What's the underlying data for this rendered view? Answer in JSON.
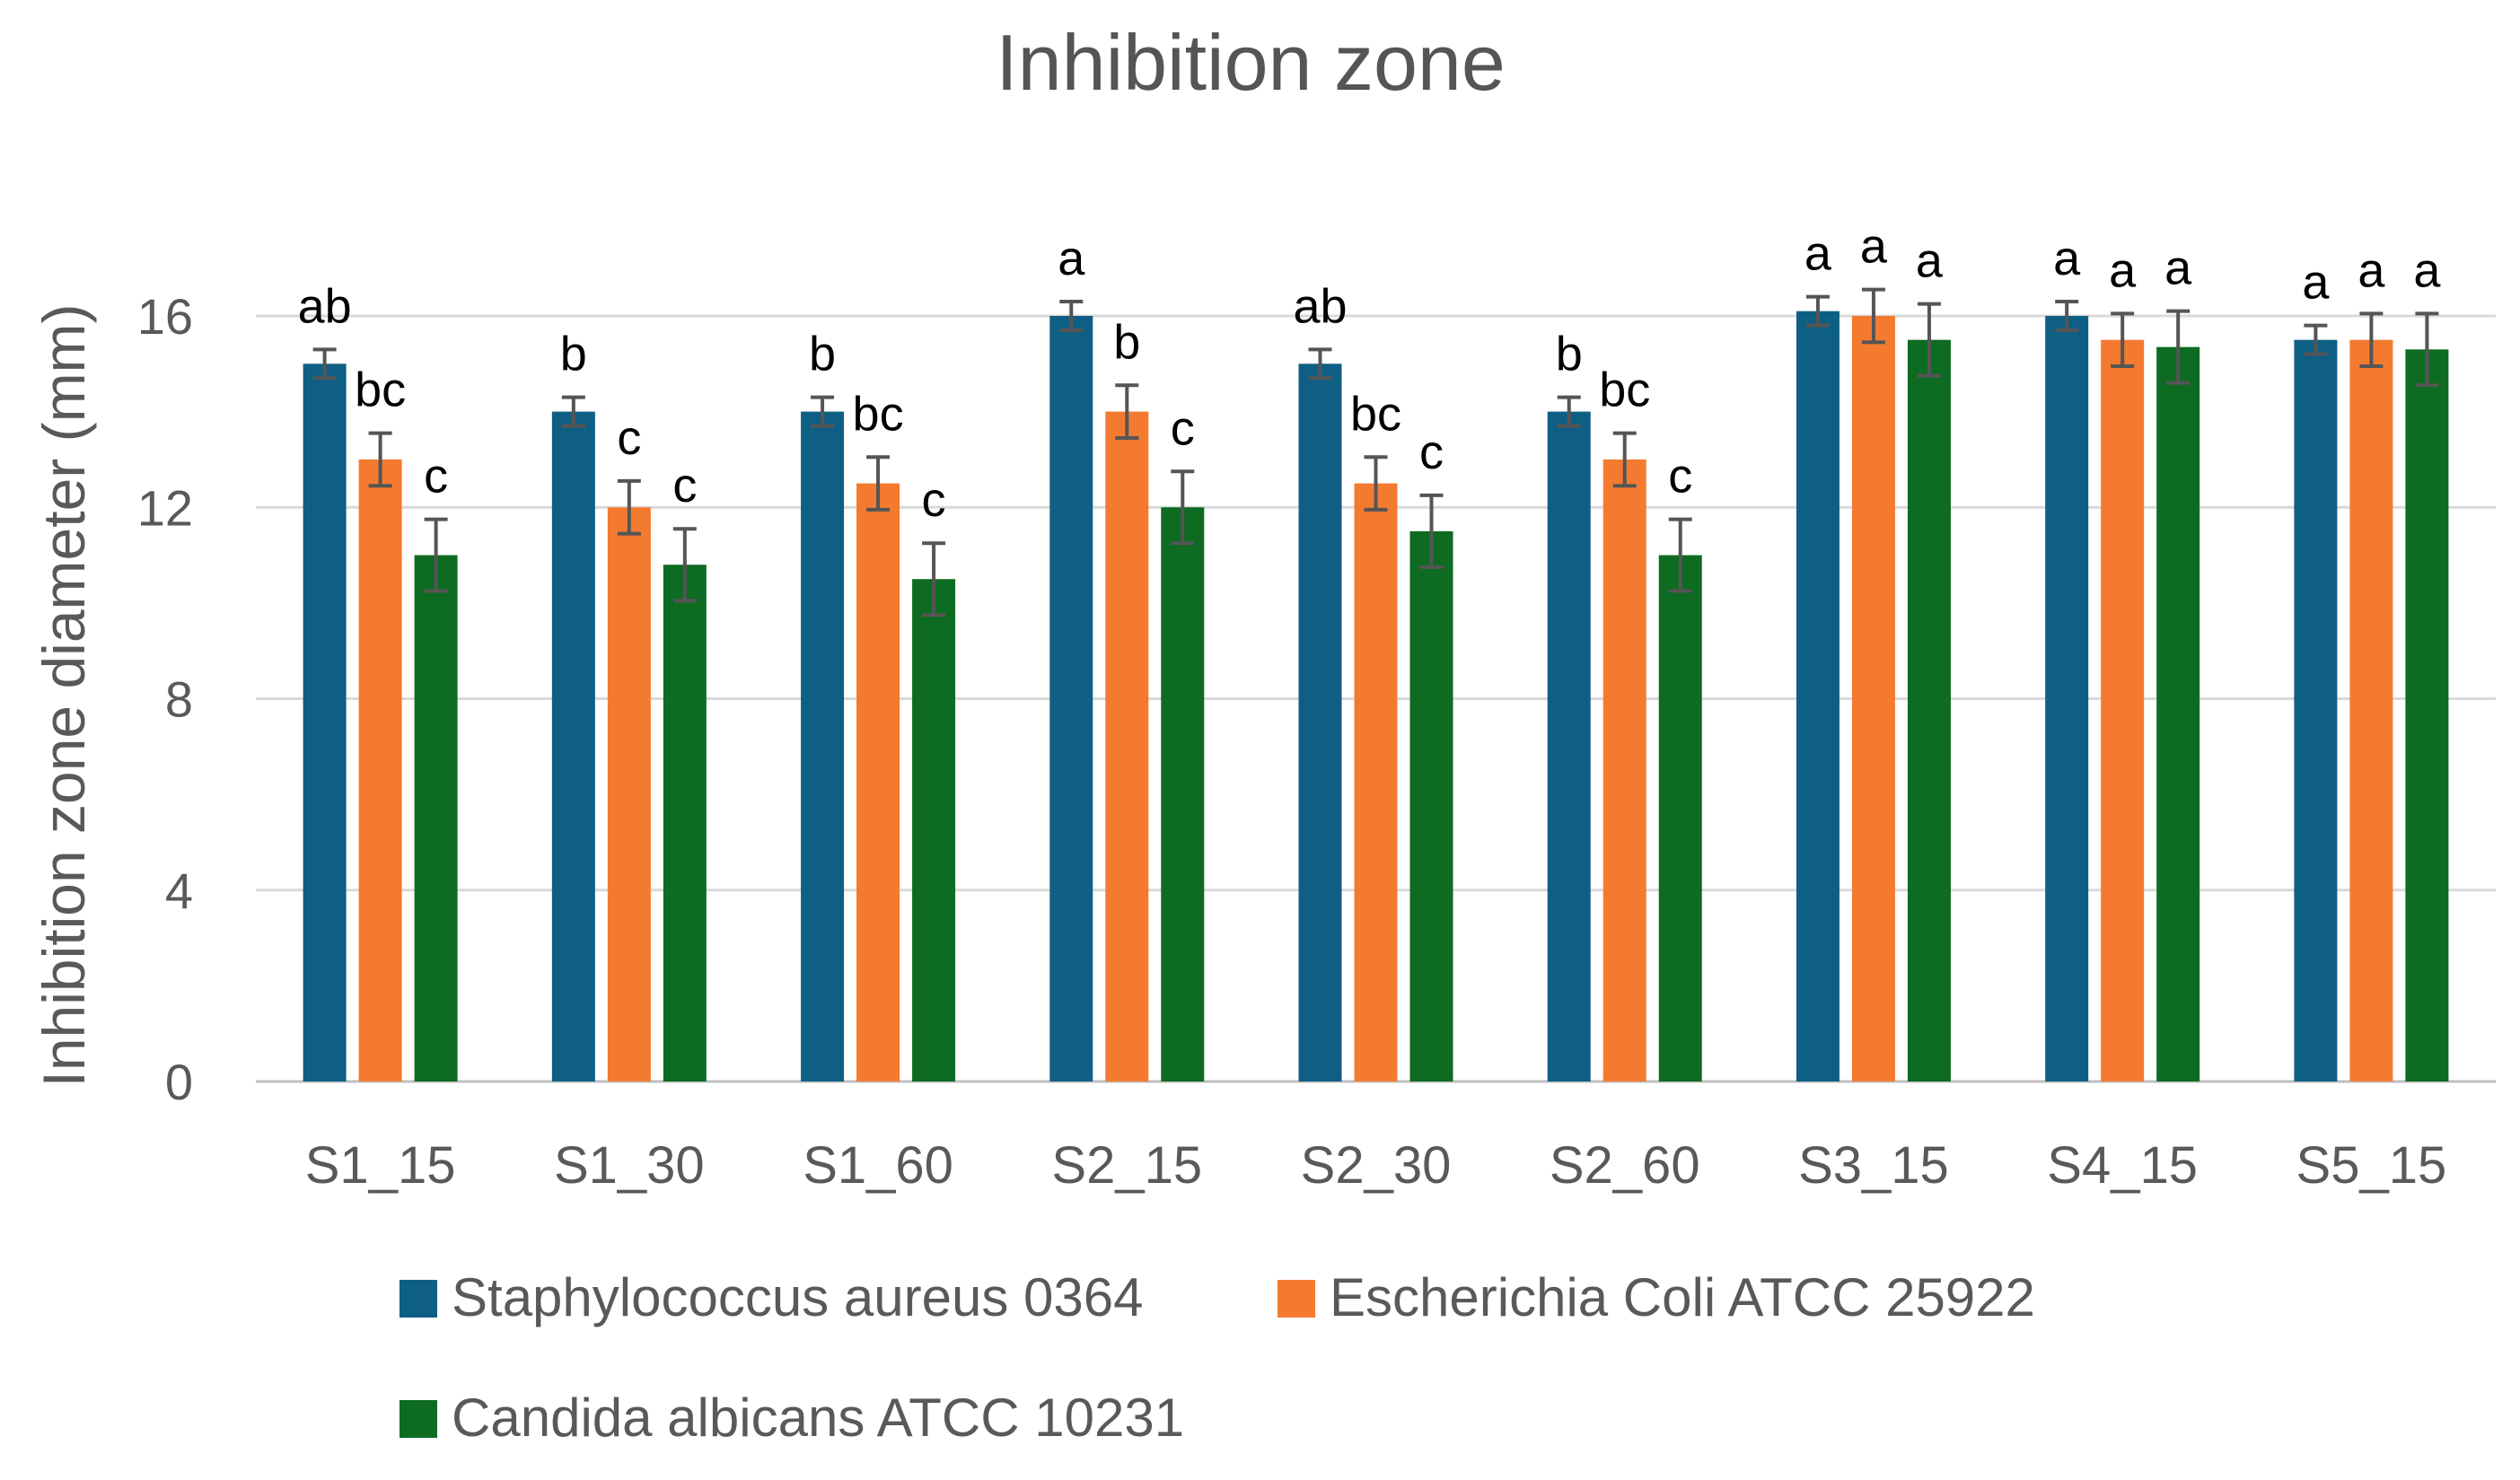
{
  "chart_data": {
    "type": "bar",
    "title": "Inhibition zone",
    "xlabel": "",
    "ylabel": "Inhibition zone diameter (mm)",
    "ylim": [
      0,
      16
    ],
    "yticks": [
      0,
      4,
      8,
      12,
      16
    ],
    "grid": true,
    "legend_position": "bottom",
    "categories": [
      "S1_15",
      "S1_30",
      "S1_60",
      "S2_15",
      "S2_30",
      "S2_60",
      "S3_15",
      "S4_15",
      "S5_15"
    ],
    "series": [
      {
        "name": "Staphylococcus aureus 0364",
        "color": "#0f5f85",
        "values": [
          15.0,
          14.0,
          14.0,
          16.0,
          15.0,
          14.0,
          16.1,
          16.0,
          15.5
        ],
        "errors": [
          0.3,
          0.3,
          0.3,
          0.3,
          0.3,
          0.3,
          0.3,
          0.3,
          0.3
        ],
        "labels": [
          "ab",
          "b",
          "b",
          "a",
          "ab",
          "b",
          "a",
          "a",
          "a"
        ]
      },
      {
        "name": "Escherichia Coli ATCC 25922",
        "color": "#f47a30",
        "values": [
          13.0,
          12.0,
          12.5,
          14.0,
          12.5,
          13.0,
          16.0,
          15.5,
          15.5
        ],
        "errors": [
          0.55,
          0.55,
          0.55,
          0.55,
          0.55,
          0.55,
          0.55,
          0.55,
          0.55
        ],
        "labels": [
          "bc",
          "c",
          "bc",
          "b",
          "bc",
          "bc",
          "a",
          "a",
          "a"
        ]
      },
      {
        "name": "Candida albicans ATCC 10231",
        "color": "#0d6b22",
        "values": [
          11.0,
          10.8,
          10.5,
          12.0,
          11.5,
          11.0,
          15.5,
          15.35,
          15.3
        ],
        "errors": [
          0.75,
          0.75,
          0.75,
          0.75,
          0.75,
          0.75,
          0.75,
          0.75,
          0.75
        ],
        "labels": [
          "c",
          "c",
          "c",
          "c",
          "c",
          "c",
          "a",
          "a",
          "a"
        ]
      }
    ]
  }
}
